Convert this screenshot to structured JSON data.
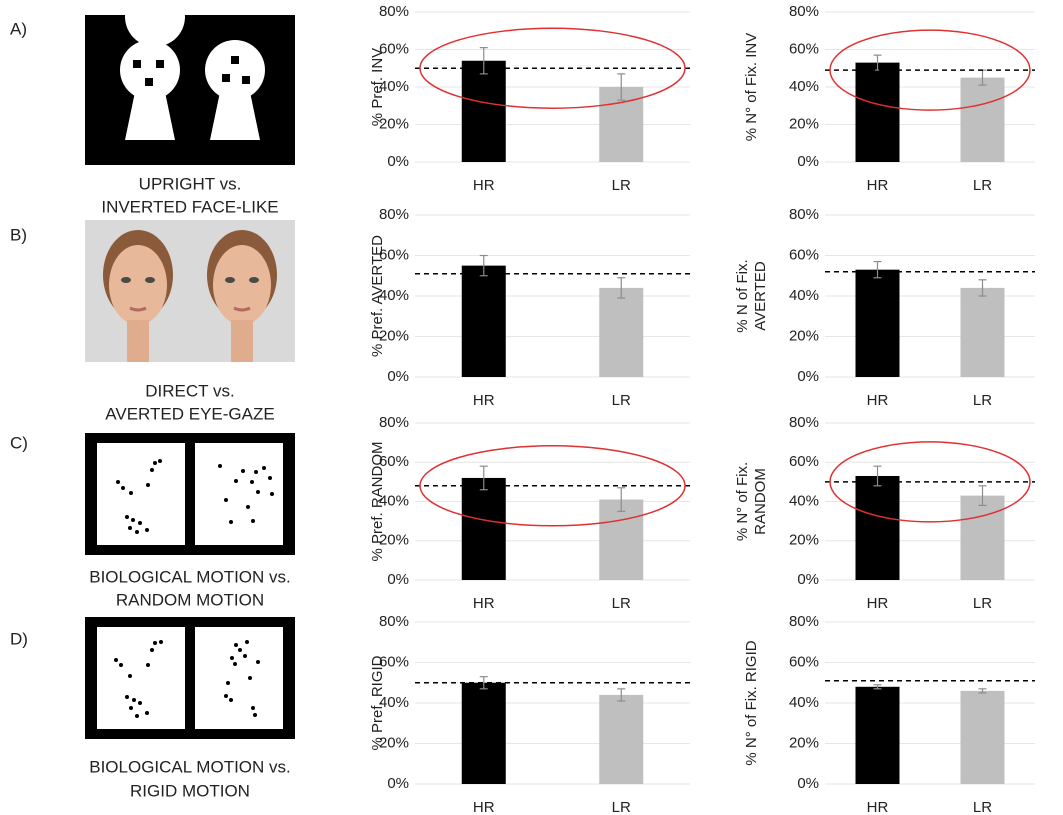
{
  "panels": [
    {
      "label": "A)",
      "caption": [
        "UPRIGHT vs.",
        "INVERTED FACE-LIKE"
      ]
    },
    {
      "label": "B)",
      "caption": [
        "DIRECT vs.",
        "AVERTED EYE-GAZE"
      ]
    },
    {
      "label": "C)",
      "caption": [
        "BIOLOGICAL MOTION vs.",
        "RANDOM MOTION"
      ]
    },
    {
      "label": "D)",
      "caption": [
        "BIOLOGICAL MOTION vs.",
        "RIGID MOTION"
      ]
    }
  ],
  "chart_data": [
    {
      "type": "bar",
      "ylabel": [
        "% Pref. INV"
      ],
      "categories": [
        "HR",
        "LR"
      ],
      "values": [
        54,
        40
      ],
      "errors": [
        7,
        7
      ],
      "colors": [
        "#000000",
        "#bfbfbf"
      ],
      "ylim": [
        0,
        80
      ],
      "yticks": [
        {
          "value": 0,
          "label": "0%"
        },
        {
          "value": 20,
          "label": "20%"
        },
        {
          "value": 40,
          "label": "40%"
        },
        {
          "value": 60,
          "label": "60%"
        },
        {
          "value": 80,
          "label": "80%"
        }
      ],
      "reference_line": 50,
      "highlight": true,
      "grid": true
    },
    {
      "type": "bar",
      "ylabel": [
        "% N° of Fix. INV"
      ],
      "categories": [
        "HR",
        "LR"
      ],
      "values": [
        53,
        45
      ],
      "errors": [
        4,
        4
      ],
      "colors": [
        "#000000",
        "#bfbfbf"
      ],
      "ylim": [
        0,
        80
      ],
      "yticks": [
        {
          "value": 0,
          "label": "0%"
        },
        {
          "value": 20,
          "label": "20%"
        },
        {
          "value": 40,
          "label": "40%"
        },
        {
          "value": 60,
          "label": "60%"
        },
        {
          "value": 80,
          "label": "80%"
        }
      ],
      "reference_line": 49,
      "highlight": true,
      "grid": true
    },
    {
      "type": "bar",
      "ylabel": [
        "% Pref. AVERTED"
      ],
      "categories": [
        "HR",
        "LR"
      ],
      "values": [
        55,
        44
      ],
      "errors": [
        5,
        5
      ],
      "colors": [
        "#000000",
        "#bfbfbf"
      ],
      "ylim": [
        0,
        80
      ],
      "yticks": [
        {
          "value": 0,
          "label": "0%"
        },
        {
          "value": 20,
          "label": "20%"
        },
        {
          "value": 40,
          "label": "40%"
        },
        {
          "value": 60,
          "label": "60%"
        },
        {
          "value": 80,
          "label": "80%"
        }
      ],
      "reference_line": 51,
      "highlight": false,
      "grid": true
    },
    {
      "type": "bar",
      "ylabel": [
        "% N of Fix.",
        "AVERTED"
      ],
      "categories": [
        "HR",
        "LR"
      ],
      "values": [
        53,
        44
      ],
      "errors": [
        4,
        4
      ],
      "colors": [
        "#000000",
        "#bfbfbf"
      ],
      "ylim": [
        0,
        80
      ],
      "yticks": [
        {
          "value": 0,
          "label": "0%"
        },
        {
          "value": 20,
          "label": "20%"
        },
        {
          "value": 40,
          "label": "40%"
        },
        {
          "value": 60,
          "label": "60%"
        },
        {
          "value": 80,
          "label": "80%"
        }
      ],
      "reference_line": 52,
      "highlight": false,
      "grid": true
    },
    {
      "type": "bar",
      "ylabel": [
        "% Pref. RANDOM"
      ],
      "categories": [
        "HR",
        "LR"
      ],
      "values": [
        52,
        41
      ],
      "errors": [
        6,
        6
      ],
      "colors": [
        "#000000",
        "#bfbfbf"
      ],
      "ylim": [
        0,
        80
      ],
      "yticks": [
        {
          "value": 0,
          "label": "0%"
        },
        {
          "value": 20,
          "label": "20%"
        },
        {
          "value": 40,
          "label": "40%"
        },
        {
          "value": 60,
          "label": "60%"
        },
        {
          "value": 80,
          "label": "80%"
        }
      ],
      "reference_line": 48,
      "highlight": true,
      "grid": true
    },
    {
      "type": "bar",
      "ylabel": [
        "% N° of Fix.",
        "RANDOM"
      ],
      "categories": [
        "HR",
        "LR"
      ],
      "values": [
        53,
        43
      ],
      "errors": [
        5,
        5
      ],
      "colors": [
        "#000000",
        "#bfbfbf"
      ],
      "ylim": [
        0,
        80
      ],
      "yticks": [
        {
          "value": 0,
          "label": "0%"
        },
        {
          "value": 20,
          "label": "20%"
        },
        {
          "value": 40,
          "label": "40%"
        },
        {
          "value": 60,
          "label": "60%"
        },
        {
          "value": 80,
          "label": "80%"
        }
      ],
      "reference_line": 50,
      "highlight": true,
      "grid": true
    },
    {
      "type": "bar",
      "ylabel": [
        "% Pref. RIGID"
      ],
      "categories": [
        "HR",
        "LR"
      ],
      "values": [
        50,
        44
      ],
      "errors": [
        3,
        3
      ],
      "colors": [
        "#000000",
        "#bfbfbf"
      ],
      "ylim": [
        0,
        80
      ],
      "yticks": [
        {
          "value": 0,
          "label": "0%"
        },
        {
          "value": 20,
          "label": "20%"
        },
        {
          "value": 40,
          "label": "40%"
        },
        {
          "value": 60,
          "label": "60%"
        },
        {
          "value": 80,
          "label": "80%"
        }
      ],
      "reference_line": 50,
      "highlight": false,
      "grid": true
    },
    {
      "type": "bar",
      "ylabel": [
        "% N° of Fix. RIGID"
      ],
      "categories": [
        "HR",
        "LR"
      ],
      "values": [
        48,
        46
      ],
      "errors": [
        1,
        1
      ],
      "colors": [
        "#000000",
        "#bfbfbf"
      ],
      "ylim": [
        0,
        80
      ],
      "yticks": [
        {
          "value": 0,
          "label": "0%"
        },
        {
          "value": 20,
          "label": "20%"
        },
        {
          "value": 40,
          "label": "40%"
        },
        {
          "value": 60,
          "label": "60%"
        },
        {
          "value": 80,
          "label": "80%"
        }
      ],
      "reference_line": 51,
      "highlight": false,
      "grid": true
    }
  ]
}
